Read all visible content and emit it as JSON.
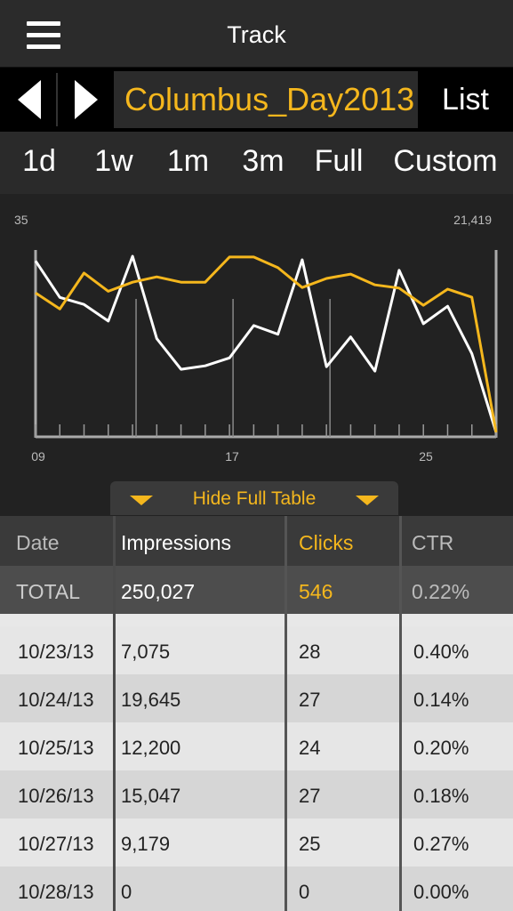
{
  "header": {
    "title": "Track"
  },
  "campaign": {
    "name": "Columbus_Day2013",
    "list_label": "List"
  },
  "ranges": [
    {
      "label": "1d",
      "active": false
    },
    {
      "label": "1w",
      "active": false
    },
    {
      "label": "1m",
      "active": true
    },
    {
      "label": "3m",
      "active": false
    },
    {
      "label": "Full",
      "active": false
    },
    {
      "label": "Custom",
      "active": false
    }
  ],
  "chart_data": {
    "type": "line",
    "left_max_label": "35",
    "right_max_label": "21,419",
    "x_tick_labels": [
      "09",
      "17",
      "25"
    ],
    "colors": {
      "clicks": "#f5b71d",
      "impressions": "#ffffff"
    },
    "series": [
      {
        "key": "impressions",
        "axis": "right",
        "values": [
          19870,
          15700,
          14900,
          13000,
          20400,
          11000,
          7500,
          7900,
          8800,
          12500,
          11500,
          20000,
          7800,
          11200,
          7300,
          18800,
          12700,
          14700,
          9300,
          300
        ]
      },
      {
        "key": "clicks",
        "axis": "left",
        "values": [
          26.5,
          23.5,
          30.2,
          26.8,
          28.5,
          29.5,
          28.5,
          28.5,
          33.2,
          33.2,
          31.2,
          27.5,
          29.2,
          30,
          28,
          27.4,
          24.2,
          27.2,
          25.7,
          0.5
        ]
      }
    ],
    "ylim_left": [
      0,
      35
    ],
    "ylim_right": [
      0,
      21419
    ]
  },
  "table": {
    "toggle_label": "Hide Full Table",
    "headers": [
      "Date",
      "Impressions",
      "Clicks",
      "CTR"
    ],
    "total": [
      "TOTAL",
      "250,027",
      "546",
      "0.22%"
    ],
    "rows": [
      [
        "10/23/13",
        "7,075",
        "28",
        "0.40%"
      ],
      [
        "10/24/13",
        "19,645",
        "27",
        "0.14%"
      ],
      [
        "10/25/13",
        "12,200",
        "24",
        "0.20%"
      ],
      [
        "10/26/13",
        "15,047",
        "27",
        "0.18%"
      ],
      [
        "10/27/13",
        "9,179",
        "25",
        "0.27%"
      ],
      [
        "10/28/13",
        "0",
        "0",
        "0.00%"
      ]
    ],
    "colors": {
      "accent": "#f5b71d",
      "header_text": "#bbbbbb"
    }
  }
}
